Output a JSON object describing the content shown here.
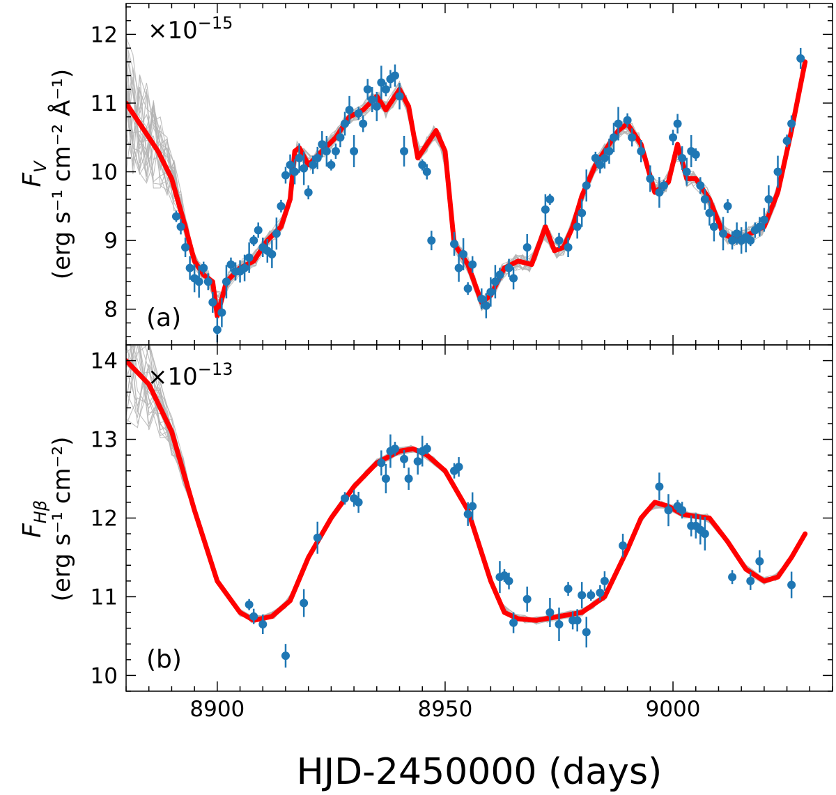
{
  "figure": {
    "xlabel": "HJD-2450000 (days)",
    "x_ticks": [
      8900,
      8950,
      9000
    ],
    "xlim": [
      8880,
      9035
    ]
  },
  "panels": [
    {
      "tag": "(a)",
      "exponent_base": "×10",
      "exponent_power": "−15",
      "ylabel_sym": "F",
      "ylabel_sub": "V",
      "ylabel_unit": "(erg s⁻¹ cm⁻² Å⁻¹)",
      "ylim": [
        7.48,
        12.45
      ],
      "yticks": [
        8,
        9,
        10,
        11,
        12
      ]
    },
    {
      "tag": "(b)",
      "exponent_base": "×10",
      "exponent_power": "−13",
      "ylabel_sym": "F",
      "ylabel_sub": "Hβ",
      "ylabel_unit": "(erg s⁻¹ cm⁻²)",
      "ylim": [
        9.8,
        14.2
      ],
      "yticks": [
        10,
        11,
        12,
        13,
        14
      ]
    }
  ],
  "colors": {
    "model": "#ff0000",
    "data": "#1f77b4",
    "realizations": "#b4b4b4"
  },
  "chart_data": [
    {
      "type": "scatter",
      "title": "(a)",
      "ylabel": "F_V (erg s^-1 cm^-2 Å^-1) ×10^-15",
      "xlabel": "HJD-2450000 (days)",
      "xlim": [
        8880,
        9035
      ],
      "ylim": [
        7.48,
        12.45
      ],
      "model_series": {
        "name": "model",
        "x": [
          8880,
          8884,
          8887,
          8890,
          8893,
          8895,
          8897,
          8899,
          8900,
          8902,
          8905,
          8908,
          8911,
          8914,
          8916,
          8917,
          8918,
          8920,
          8923,
          8926,
          8929,
          8932,
          8935,
          8937,
          8940,
          8942,
          8944,
          8946,
          8948,
          8950,
          8952,
          8955,
          8958,
          8960,
          8963,
          8966,
          8969,
          8972,
          8974,
          8976,
          8978,
          8980,
          8983,
          8986,
          8988,
          8990,
          8993,
          8996,
          8999,
          9001,
          9003,
          9005,
          9008,
          9011,
          9014,
          9017,
          9020,
          9023,
          9026,
          9029
        ],
        "y": [
          11.0,
          10.6,
          10.3,
          9.9,
          9.2,
          8.7,
          8.5,
          8.4,
          7.9,
          8.4,
          8.6,
          8.7,
          9.0,
          9.2,
          9.6,
          10.3,
          10.35,
          10.1,
          10.3,
          10.5,
          10.8,
          10.9,
          11.1,
          10.9,
          11.2,
          10.95,
          10.2,
          10.4,
          10.6,
          10.3,
          8.95,
          8.65,
          8.1,
          8.2,
          8.6,
          8.7,
          8.65,
          9.2,
          8.85,
          8.9,
          9.2,
          9.65,
          10.1,
          10.4,
          10.6,
          10.7,
          10.4,
          9.7,
          9.85,
          10.4,
          9.9,
          9.9,
          9.6,
          9.1,
          9.0,
          9.1,
          9.2,
          9.7,
          10.6,
          11.6
        ]
      },
      "points": {
        "name": "observations",
        "x": [
          8891,
          8892,
          8893,
          8894,
          8895,
          8896,
          8897,
          8898,
          8899,
          8900,
          8901,
          8902,
          8903,
          8904,
          8905,
          8906,
          8907,
          8908,
          8909,
          8910,
          8911,
          8912,
          8913,
          8914,
          8915,
          8916,
          8917,
          8918,
          8919,
          8920,
          8921,
          8922,
          8923,
          8924,
          8925,
          8926,
          8927,
          8928,
          8929,
          8930,
          8931,
          8932,
          8933,
          8934,
          8935,
          8936,
          8937,
          8938,
          8939,
          8940,
          8941,
          8945,
          8946,
          8947,
          8952,
          8953,
          8954,
          8955,
          8956,
          8958,
          8959,
          8960,
          8961,
          8962,
          8964,
          8965,
          8968,
          8972,
          8973,
          8975,
          8977,
          8979,
          8980,
          8981,
          8983,
          8984,
          8985,
          8986,
          8987,
          8988,
          8990,
          8991,
          8993,
          8995,
          8997,
          8998,
          9000,
          9001,
          9002,
          9003,
          9004,
          9005,
          9006,
          9007,
          9008,
          9009,
          9011,
          9012,
          9013,
          9014,
          9015,
          9016,
          9017,
          9018,
          9019,
          9020,
          9021,
          9023,
          9025,
          9026,
          9028
        ],
        "y": [
          9.35,
          9.2,
          8.9,
          8.6,
          8.45,
          8.4,
          8.6,
          8.4,
          8.1,
          7.7,
          7.95,
          8.4,
          8.65,
          8.55,
          8.55,
          8.6,
          8.75,
          9.0,
          9.15,
          8.9,
          8.85,
          8.8,
          9.1,
          9.5,
          9.95,
          10.1,
          10.0,
          10.2,
          10.05,
          9.7,
          10.1,
          10.2,
          10.4,
          10.3,
          10.1,
          10.3,
          10.5,
          10.7,
          10.9,
          10.3,
          10.85,
          10.7,
          11.2,
          11.05,
          10.95,
          11.3,
          11.2,
          11.35,
          11.4,
          11.1,
          10.3,
          10.1,
          10.0,
          9.0,
          8.95,
          8.6,
          8.8,
          8.3,
          8.65,
          8.15,
          8.05,
          8.25,
          8.4,
          8.5,
          8.6,
          8.45,
          8.9,
          9.45,
          9.6,
          9.0,
          8.9,
          9.2,
          9.4,
          9.8,
          10.2,
          10.1,
          10.2,
          10.3,
          10.5,
          10.7,
          10.75,
          10.5,
          10.3,
          9.9,
          9.7,
          9.8,
          10.5,
          10.7,
          10.2,
          10.0,
          10.3,
          10.25,
          9.8,
          9.6,
          9.4,
          9.2,
          9.1,
          9.5,
          9.0,
          9.1,
          9.0,
          9.05,
          9.0,
          9.15,
          9.2,
          9.3,
          9.6,
          10.0,
          10.45,
          10.7,
          11.65
        ]
      }
    },
    {
      "type": "scatter",
      "title": "(b)",
      "ylabel": "F_Hβ (erg s^-1 cm^-2) ×10^-13",
      "xlabel": "HJD-2450000 (days)",
      "xlim": [
        8880,
        9035
      ],
      "ylim": [
        9.8,
        14.2
      ],
      "model_series": {
        "name": "model",
        "x": [
          8880,
          8885,
          8890,
          8895,
          8900,
          8905,
          8908,
          8912,
          8916,
          8920,
          8925,
          8930,
          8935,
          8940,
          8943,
          8946,
          8950,
          8955,
          8960,
          8963,
          8966,
          8970,
          8975,
          8980,
          8985,
          8990,
          8993,
          8996,
          8999,
          9002,
          9005,
          9008,
          9012,
          9016,
          9020,
          9023,
          9026,
          9029
        ],
        "y": [
          14.0,
          13.7,
          13.1,
          12.1,
          11.2,
          10.8,
          10.7,
          10.75,
          10.95,
          11.5,
          12.0,
          12.4,
          12.7,
          12.85,
          12.88,
          12.8,
          12.6,
          12.1,
          11.2,
          10.8,
          10.72,
          10.7,
          10.75,
          10.8,
          11.0,
          11.6,
          12.0,
          12.2,
          12.15,
          12.05,
          12.02,
          12.0,
          11.7,
          11.35,
          11.2,
          11.25,
          11.5,
          11.8
        ]
      },
      "points": {
        "name": "observations",
        "x": [
          8907,
          8908,
          8910,
          8915,
          8919,
          8922,
          8928,
          8930,
          8931,
          8936,
          8937,
          8938,
          8939,
          8941,
          8942,
          8944,
          8945,
          8946,
          8952,
          8953,
          8955,
          8956,
          8962,
          8963,
          8964,
          8965,
          8968,
          8973,
          8975,
          8977,
          8978,
          8979,
          8980,
          8981,
          8982,
          8984,
          8985,
          8989,
          8997,
          8999,
          9001,
          9002,
          9004,
          9005,
          9006,
          9007,
          9013,
          9017,
          9019,
          9026
        ],
        "y": [
          10.9,
          10.75,
          10.65,
          10.25,
          10.92,
          11.75,
          12.25,
          12.25,
          12.2,
          12.7,
          12.5,
          12.85,
          12.88,
          12.75,
          12.5,
          12.72,
          12.85,
          12.88,
          12.6,
          12.65,
          12.05,
          12.15,
          11.25,
          11.27,
          11.2,
          10.67,
          10.97,
          10.8,
          10.65,
          11.1,
          10.7,
          10.7,
          11.02,
          10.55,
          11.02,
          11.05,
          11.2,
          11.65,
          12.4,
          12.1,
          12.15,
          12.1,
          11.9,
          11.9,
          11.85,
          11.8,
          11.25,
          11.2,
          11.45,
          11.15
        ]
      }
    }
  ]
}
